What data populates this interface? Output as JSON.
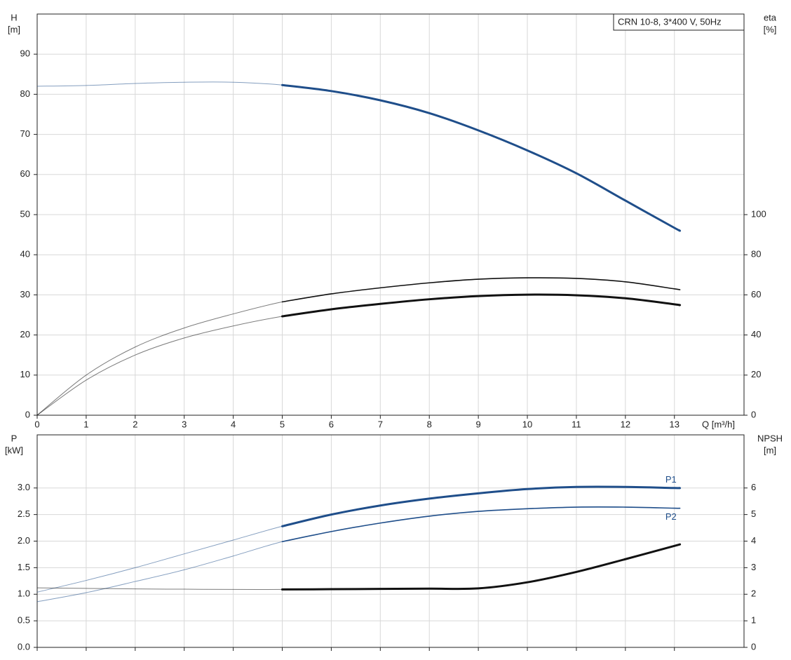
{
  "chart_data": [
    {
      "type": "line",
      "title": "CRN 10-8, 3*400 V, 50Hz",
      "xlabel": "Q [m³/h]",
      "ylabel": [
        "H",
        "[m]"
      ],
      "y2label": [
        "eta",
        "[%]"
      ],
      "x": [
        0,
        1,
        2,
        3,
        4,
        5,
        6,
        7,
        8,
        9,
        10,
        11,
        12,
        13,
        13.1
      ],
      "xlim": [
        0,
        14.42
      ],
      "xticks": [
        0,
        1,
        2,
        3,
        4,
        5,
        6,
        7,
        8,
        9,
        10,
        11,
        12,
        13
      ],
      "ylim": [
        0,
        100
      ],
      "yticks": [
        0,
        10,
        20,
        30,
        40,
        50,
        60,
        70,
        80,
        90
      ],
      "y2lim": [
        0,
        200
      ],
      "y2ticks": [
        0,
        20,
        40,
        60,
        80,
        100
      ],
      "grid": true,
      "bold_from_x": 5,
      "series": [
        {
          "color": "#1f4e8a",
          "line_width": 3,
          "values": [
            82,
            82.2,
            82.7,
            83,
            83,
            82.3,
            80.8,
            78.5,
            75.3,
            71,
            66,
            60.3,
            53.5,
            46.7,
            46.1
          ]
        },
        {
          "color": "#111111",
          "line_width": 1.6,
          "axis": "y2",
          "values": [
            0,
            20,
            34,
            43.5,
            50.5,
            56.5,
            60.5,
            63.5,
            66,
            67.8,
            68.5,
            68.2,
            66.5,
            63,
            62.6
          ]
        },
        {
          "color": "#111111",
          "line_width": 3,
          "axis": "y2",
          "values": [
            0,
            17.5,
            30,
            38.5,
            44.5,
            49.3,
            52.8,
            55.5,
            57.8,
            59.4,
            60.1,
            59.8,
            58.3,
            55.3,
            54.9
          ]
        }
      ]
    },
    {
      "type": "line",
      "ylabel": [
        "P",
        "[kW]"
      ],
      "y2label": [
        "NPSH",
        "[m]"
      ],
      "x": [
        0,
        1,
        2,
        3,
        4,
        5,
        6,
        7,
        8,
        9,
        10,
        11,
        12,
        13,
        13.1
      ],
      "xlim": [
        0,
        14.42
      ],
      "xticks": [
        0,
        1,
        2,
        3,
        4,
        5,
        6,
        7,
        8,
        9,
        10,
        11,
        12,
        13
      ],
      "ylim": [
        0,
        4
      ],
      "yticks": [
        {
          "value": 0,
          "label": "0.0"
        },
        0.5,
        {
          "value": 1,
          "label": "1.0"
        },
        1.5,
        {
          "value": 2,
          "label": "2.0"
        },
        2.5,
        {
          "value": 3,
          "label": "3.0"
        }
      ],
      "y2lim": [
        0,
        8
      ],
      "y2ticks": [
        0,
        1,
        2,
        3,
        4,
        5,
        6
      ],
      "grid": true,
      "bold_from_x": 5,
      "series": [
        {
          "name": "P1",
          "color": "#1f4e8a",
          "line_width": 3,
          "values": [
            1.04,
            1.26,
            1.5,
            1.76,
            2.02,
            2.28,
            2.5,
            2.67,
            2.8,
            2.9,
            2.98,
            3.02,
            3.02,
            3.0,
            3.0
          ]
        },
        {
          "name": "P2",
          "color": "#1f4e8a",
          "line_width": 1.6,
          "values": [
            0.86,
            1.03,
            1.24,
            1.46,
            1.72,
            1.99,
            2.18,
            2.34,
            2.47,
            2.56,
            2.61,
            2.64,
            2.64,
            2.62,
            2.62
          ]
        },
        {
          "color": "#111111",
          "line_width": 3,
          "axis": "y2",
          "values": [
            2.24,
            2.22,
            2.2,
            2.19,
            2.18,
            2.18,
            2.19,
            2.2,
            2.21,
            2.22,
            2.45,
            2.84,
            3.32,
            3.82,
            3.87
          ]
        }
      ]
    }
  ]
}
